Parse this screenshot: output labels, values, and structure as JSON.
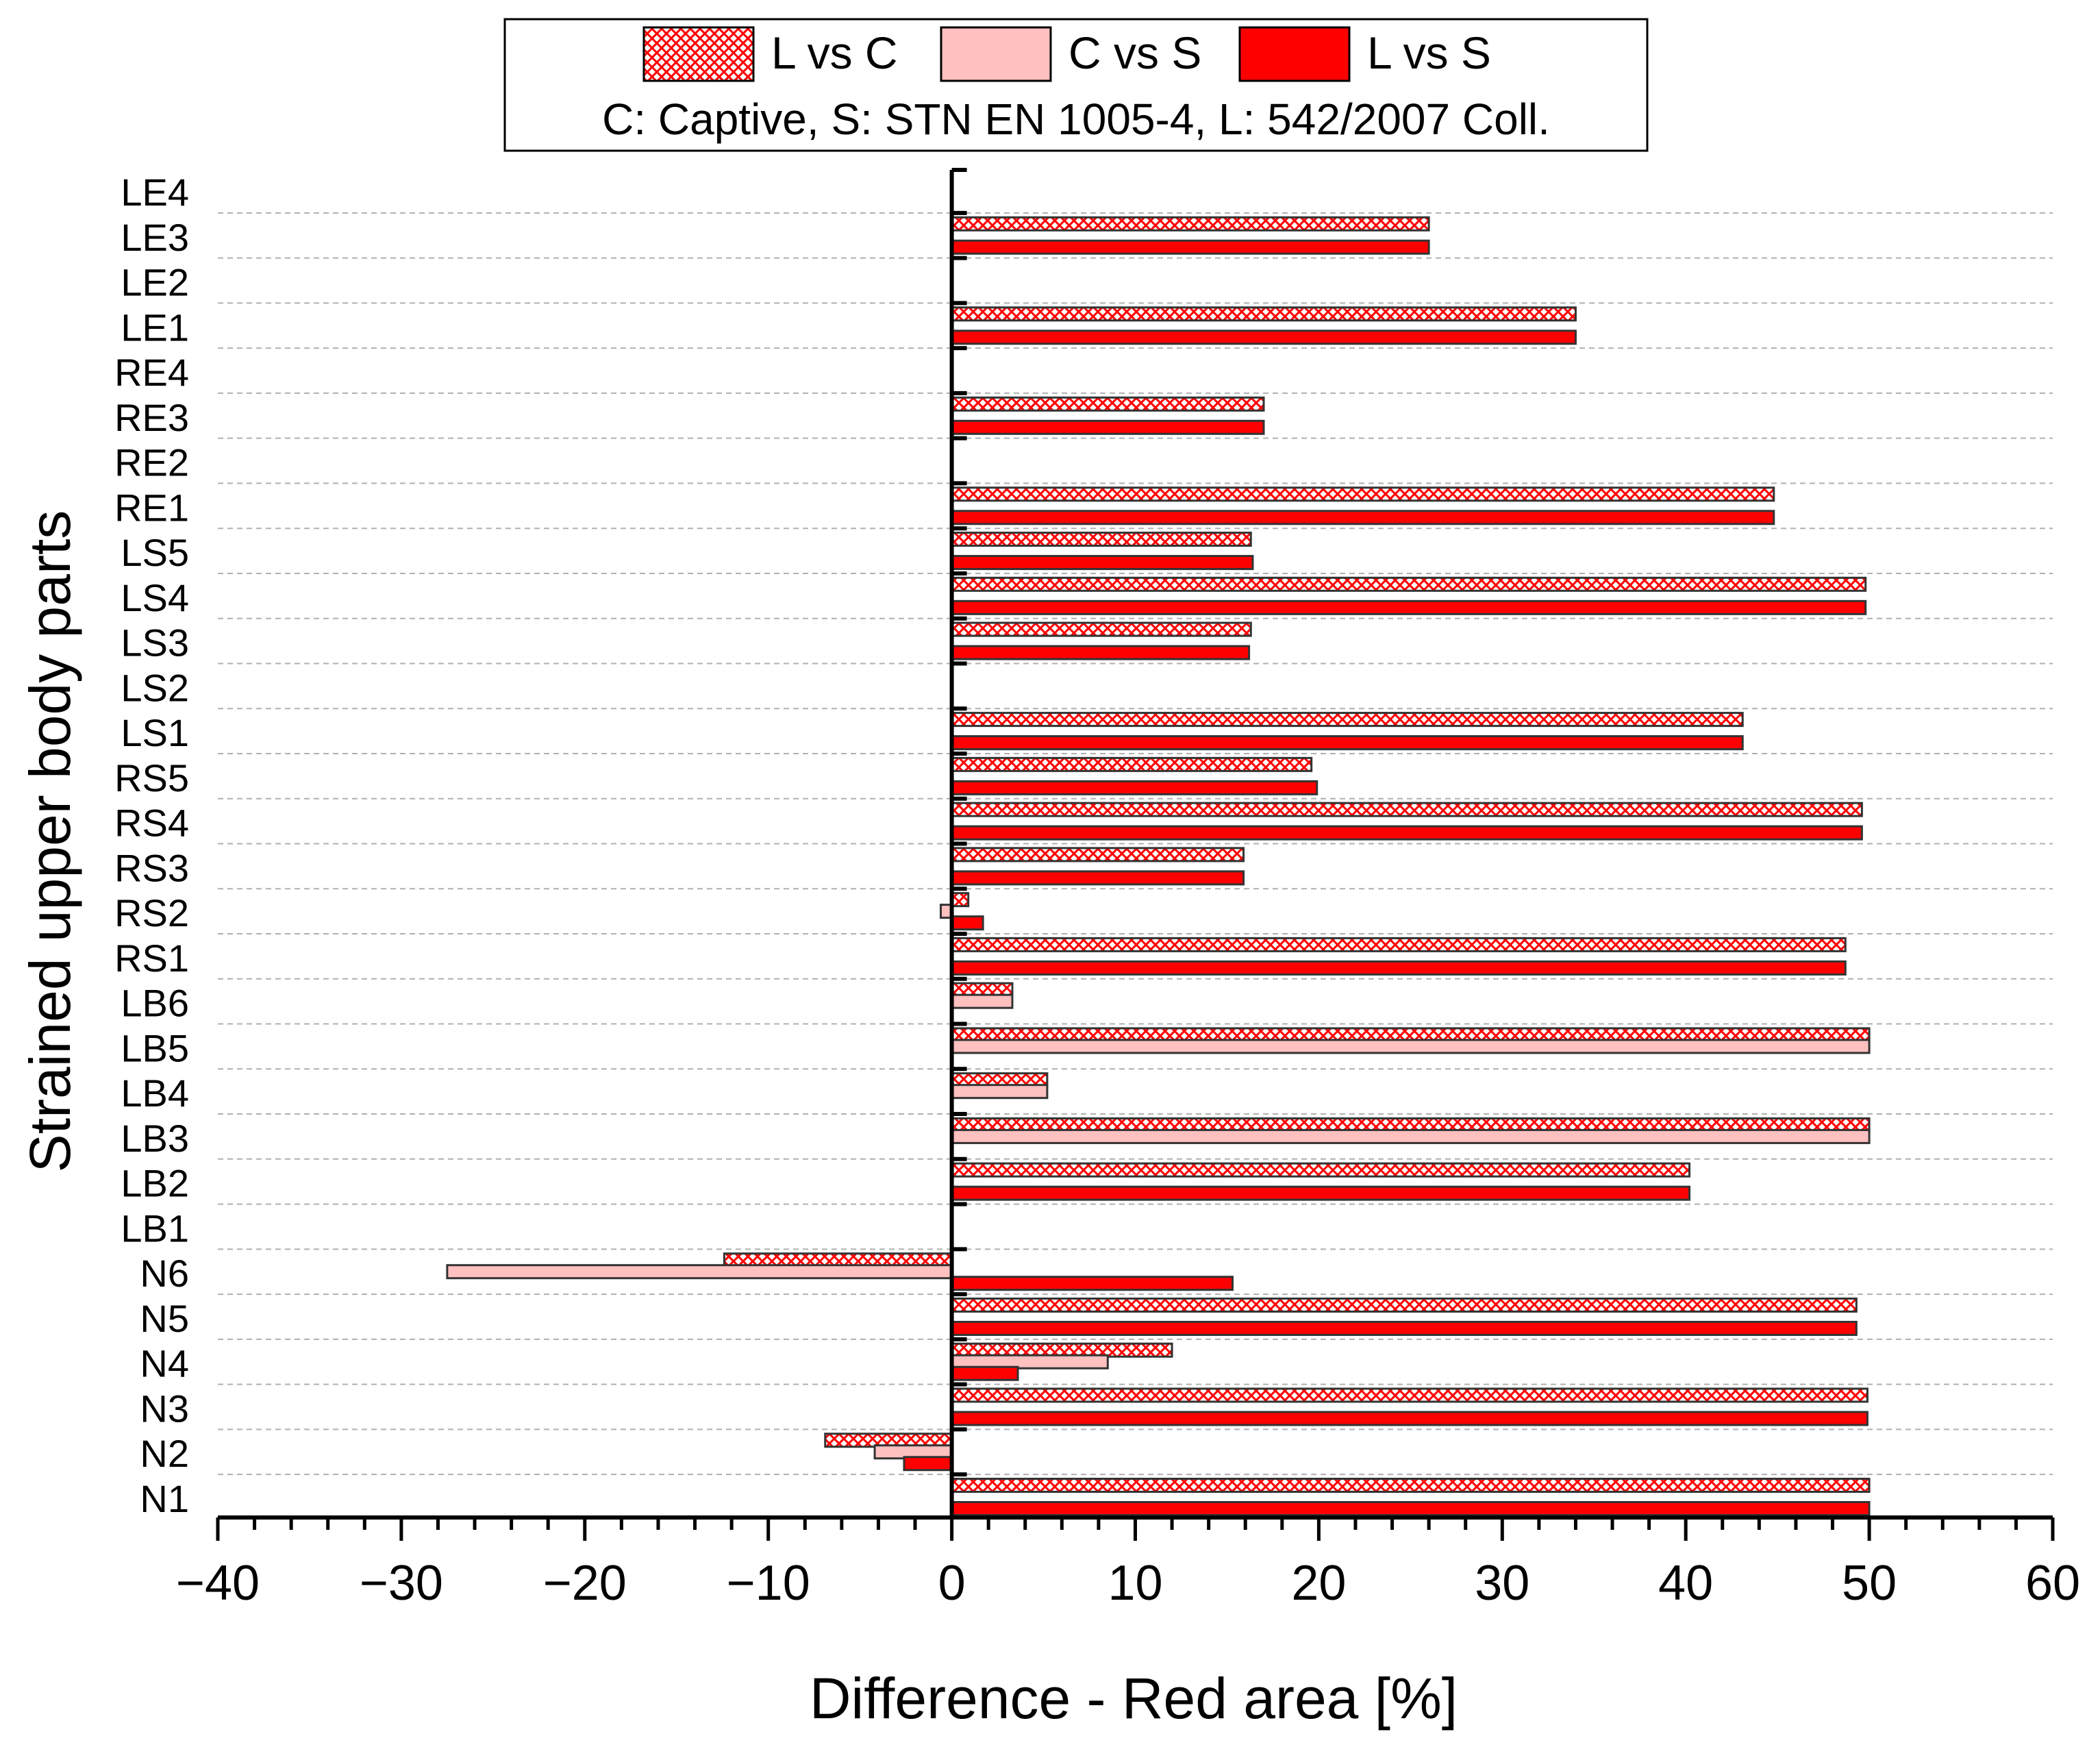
{
  "chart_data": {
    "type": "bar",
    "orientation": "horizontal",
    "title": "",
    "xlabel": "Difference - Red area [%]",
    "ylabel": "Strained upper body parts",
    "xlim": [
      -40,
      60
    ],
    "xticks": [
      -40,
      -30,
      -20,
      -10,
      0,
      10,
      20,
      30,
      40,
      50,
      60
    ],
    "xtick_labels": [
      "−40",
      "−30",
      "−20",
      "−10",
      "0",
      "10",
      "20",
      "30",
      "40",
      "50",
      "60"
    ],
    "grid": "horizontal dashed",
    "legend_position": "top-center",
    "legend_note": "C: Captive, S: STN EN 1005-4, L: 542/2007 Coll.",
    "categories": [
      "LE4",
      "LE3",
      "LE2",
      "LE1",
      "RE4",
      "RE3",
      "RE2",
      "RE1",
      "LS5",
      "LS4",
      "LS3",
      "LS2",
      "LS1",
      "RS5",
      "RS4",
      "RS3",
      "RS2",
      "RS1",
      "LB6",
      "LB5",
      "LB4",
      "LB3",
      "LB2",
      "LB1",
      "N6",
      "N5",
      "N4",
      "N3",
      "N2",
      "N1"
    ],
    "series": [
      {
        "name": "L vs C",
        "style": "hatch",
        "color": "#ff0000",
        "values": [
          0,
          26,
          0,
          34,
          0,
          17,
          0,
          44.8,
          16.3,
          49.8,
          16.3,
          0,
          43.1,
          19.6,
          49.6,
          15.9,
          0.9,
          48.7,
          3.3,
          50,
          5.2,
          50,
          40.2,
          0,
          -12.4,
          49.3,
          12,
          49.9,
          -6.9,
          50
        ]
      },
      {
        "name": "C vs S",
        "style": "solid",
        "color": "#ffc0c0",
        "values": [
          0,
          0,
          0,
          0,
          0,
          0,
          0,
          0,
          0,
          0,
          0,
          0,
          0,
          0,
          0,
          0,
          -0.6,
          0,
          3.3,
          50,
          5.2,
          50,
          0,
          0,
          -27.5,
          0,
          8.5,
          0,
          -4.2,
          0
        ]
      },
      {
        "name": "L vs S",
        "style": "solid",
        "color": "#ff0000",
        "values": [
          0,
          26,
          0,
          34,
          0,
          17,
          0,
          44.8,
          16.4,
          49.8,
          16.2,
          0,
          43.1,
          19.9,
          49.6,
          15.9,
          1.7,
          48.7,
          0,
          0,
          0,
          0,
          40.2,
          0,
          15.3,
          49.3,
          3.6,
          49.9,
          -2.6,
          50
        ]
      }
    ]
  }
}
